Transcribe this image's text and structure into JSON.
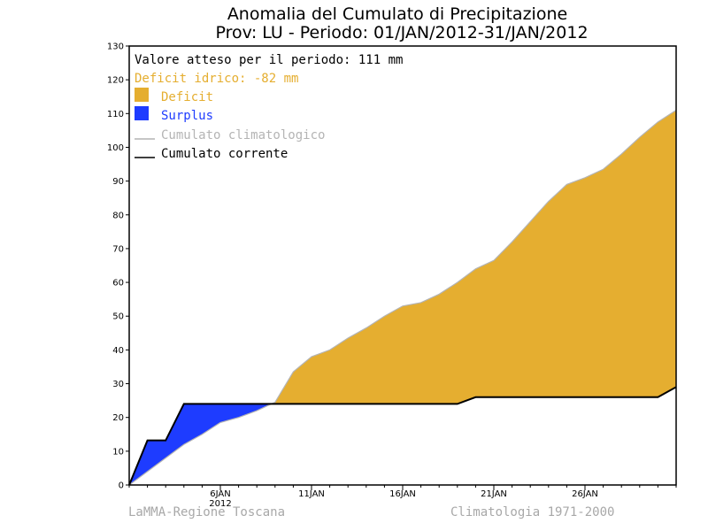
{
  "chart_data": {
    "type": "area",
    "title": "Anomalia del Cumulato di Precipitazione",
    "subtitle": "Prov: LU - Periodo: 01/JAN/2012-31/JAN/2012",
    "xlabel": "",
    "ylabel": "",
    "ylim": [
      0,
      130
    ],
    "xlim": [
      1,
      31
    ],
    "grid": false,
    "y_ticks": [
      0,
      10,
      20,
      30,
      40,
      50,
      60,
      70,
      80,
      90,
      100,
      110,
      120,
      130
    ],
    "x_ticks": [
      {
        "day": 6,
        "label": "6JAN",
        "sublabel": "2012"
      },
      {
        "day": 11,
        "label": "11JAN",
        "sublabel": ""
      },
      {
        "day": 16,
        "label": "16JAN",
        "sublabel": ""
      },
      {
        "day": 21,
        "label": "21JAN",
        "sublabel": ""
      },
      {
        "day": 26,
        "label": "26JAN",
        "sublabel": ""
      }
    ],
    "legend": {
      "placement": "top-left",
      "expected_text": "Valore atteso per il periodo: 111 mm",
      "deficit_text": "Deficit idrico: -82 mm",
      "items": [
        {
          "label": "Deficit",
          "kind": "box",
          "color": "#e5ae30"
        },
        {
          "label": "Surplus",
          "kind": "box",
          "color": "#1e3cff"
        },
        {
          "label": "Cumulato climatologico",
          "kind": "line",
          "color": "#b4b4b4"
        },
        {
          "label": "Cumulato corrente",
          "kind": "line",
          "color": "#000000"
        }
      ]
    },
    "colors": {
      "deficit": "#e5ae30",
      "surplus": "#1e3cff",
      "climatological": "#b4b4b4",
      "current": "#000000",
      "deficit_text": "#e5ae30",
      "surplus_text": "#1e3cff"
    },
    "series": [
      {
        "name": "Cumulato climatologico",
        "x": [
          1,
          2,
          3,
          4,
          5,
          6,
          7,
          8,
          9,
          10,
          11,
          12,
          13,
          14,
          15,
          16,
          17,
          18,
          19,
          20,
          21,
          22,
          23,
          24,
          25,
          26,
          27,
          28,
          29,
          30,
          31
        ],
        "y": [
          0,
          4,
          8,
          12,
          15,
          18.5,
          20,
          22,
          24.5,
          33.5,
          38,
          40,
          43.5,
          46.5,
          50,
          53,
          54,
          56.5,
          60,
          64,
          66.5,
          72,
          78,
          84,
          89,
          91,
          93.5,
          98,
          103,
          107.5,
          111
        ]
      },
      {
        "name": "Cumulato corrente",
        "x": [
          1,
          2,
          3,
          4,
          5,
          6,
          7,
          8,
          9,
          10,
          11,
          12,
          13,
          14,
          15,
          16,
          17,
          18,
          19,
          20,
          21,
          22,
          23,
          24,
          25,
          26,
          27,
          28,
          29,
          30,
          31
        ],
        "y": [
          0,
          13.2,
          13.2,
          24,
          24,
          24,
          24,
          24,
          24,
          24,
          24,
          24,
          24,
          24,
          24,
          24,
          24,
          24,
          24,
          26,
          26,
          26,
          26,
          26,
          26,
          26,
          26,
          26,
          26,
          26,
          29
        ]
      }
    ],
    "footer_left": "LaMMA-Regione Toscana",
    "footer_right": "Climatologia 1971-2000"
  }
}
